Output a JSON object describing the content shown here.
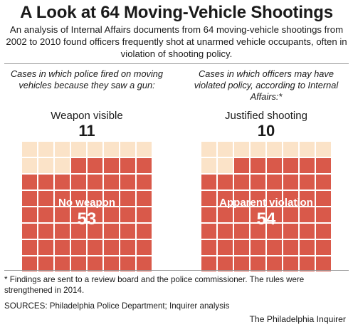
{
  "title": "A Look at 64 Moving-Vehicle Shootings",
  "subtitle": "An analysis of Internal Affairs documents from 64 moving-vehicle shootings from 2002 to 2010 found officers frequently shot at unarmed vehicle occupants, often in violation of shooting policy.",
  "colors": {
    "light": "#fbe3c8",
    "dark": "#d9594a",
    "grid_line": "#ffffff"
  },
  "chart_data": [
    {
      "type": "waffle",
      "description": "Cases in which police fired on moving vehicles because they saw a gun:",
      "total": 64,
      "grid": {
        "rows": 8,
        "cols": 8
      },
      "series": [
        {
          "name": "Weapon visible",
          "value": 11,
          "color": "#fbe3c8"
        },
        {
          "name": "No weapon",
          "value": 53,
          "color": "#d9594a"
        }
      ]
    },
    {
      "type": "waffle",
      "description": "Cases in which officers may have violated policy, according to Internal Affairs:*",
      "total": 64,
      "grid": {
        "rows": 8,
        "cols": 8
      },
      "series": [
        {
          "name": "Justified shooting",
          "value": 10,
          "color": "#fbe3c8"
        },
        {
          "name": "Apparent violation",
          "value": 54,
          "color": "#d9594a"
        }
      ]
    }
  ],
  "footnote": "* Findings are sent to a review board and the police commissioner. The rules were strengthened in 2014.",
  "sources": "SOURCES: Philadelphia Police Department; Inquirer analysis",
  "credit": "The Philadelphia Inquirer"
}
